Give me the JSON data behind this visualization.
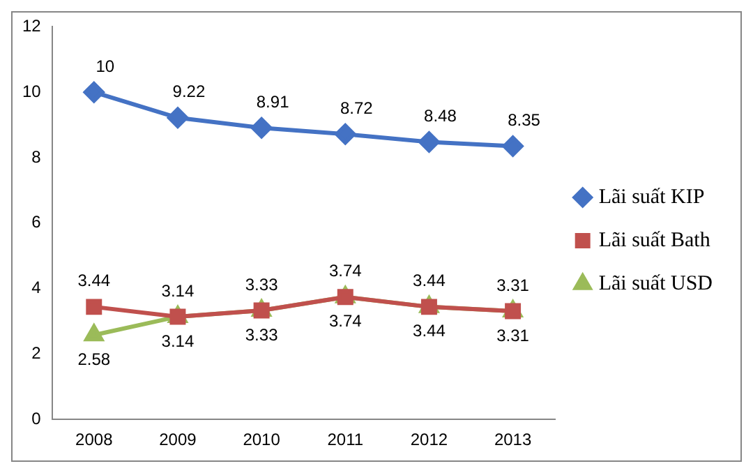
{
  "chart_data": {
    "type": "line",
    "categories": [
      "2008",
      "2009",
      "2010",
      "2011",
      "2012",
      "2013"
    ],
    "series": [
      {
        "name": "Lãi suất KIP",
        "color": "#4472c4",
        "marker": "diamond",
        "values": [
          10,
          9.22,
          8.91,
          8.72,
          8.48,
          8.35
        ]
      },
      {
        "name": "Lãi suất Bath",
        "color": "#c0504d",
        "marker": "square",
        "values": [
          3.44,
          3.14,
          3.33,
          3.74,
          3.44,
          3.31
        ]
      },
      {
        "name": "Lãi suất USD",
        "color": "#9bbb59",
        "marker": "triangle",
        "values": [
          2.58,
          3.14,
          3.33,
          3.74,
          3.44,
          3.31
        ]
      }
    ],
    "ylim": [
      0,
      12
    ],
    "yticks": [
      0,
      2,
      4,
      6,
      8,
      10,
      12
    ],
    "grid": false,
    "legend": "right",
    "data_labels": true
  }
}
